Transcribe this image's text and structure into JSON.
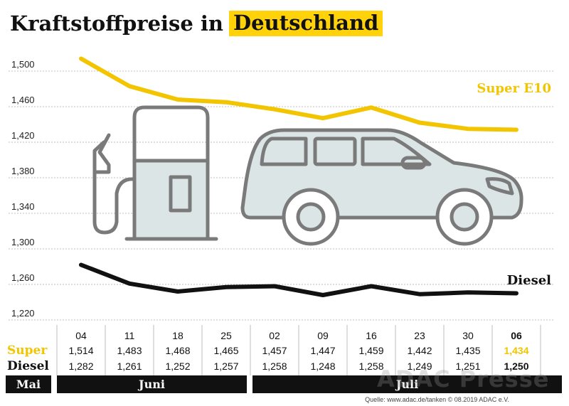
{
  "title": {
    "prefix": "Kraftstoffpreise in",
    "highlight": "Deutschland"
  },
  "colors": {
    "super": "#f2c500",
    "diesel": "#111111",
    "highlight": "#ffd20a",
    "illustration_fill": "#dce5e6",
    "illustration_stroke": "#7a7a7a"
  },
  "chart_data": {
    "type": "line",
    "y_ticks": [
      "1,500",
      "1,460",
      "1,420",
      "1,380",
      "1,340",
      "1,300",
      "1,260",
      "1,220"
    ],
    "ylim": [
      1.22,
      1.52
    ],
    "grid": true,
    "categories": [
      "04",
      "11",
      "18",
      "25",
      "02",
      "09",
      "16",
      "23",
      "30",
      "06"
    ],
    "series": [
      {
        "name": "Super E10",
        "row_label": "Super",
        "values": [
          1.514,
          1.483,
          1.468,
          1.465,
          1.457,
          1.447,
          1.459,
          1.442,
          1.435,
          1.434
        ],
        "labels": [
          "1,514",
          "1,483",
          "1,468",
          "1,465",
          "1,457",
          "1,447",
          "1,459",
          "1,442",
          "1,435",
          "1,434"
        ]
      },
      {
        "name": "Diesel",
        "row_label": "Diesel",
        "values": [
          1.282,
          1.261,
          1.252,
          1.257,
          1.258,
          1.248,
          1.258,
          1.249,
          1.251,
          1.25
        ],
        "labels": [
          "1,282",
          "1,261",
          "1,252",
          "1,257",
          "1,258",
          "1,248",
          "1,258",
          "1,249",
          "1,251",
          "1,250"
        ]
      }
    ],
    "months": [
      "Mai",
      "Juni",
      "Juli"
    ],
    "illustration": [
      "fuel-pump-icon",
      "car-icon"
    ]
  },
  "watermark": "ADAC Presse",
  "source": "Quelle: www.adac.de/tanken  © 08.2019  ADAC e.V."
}
